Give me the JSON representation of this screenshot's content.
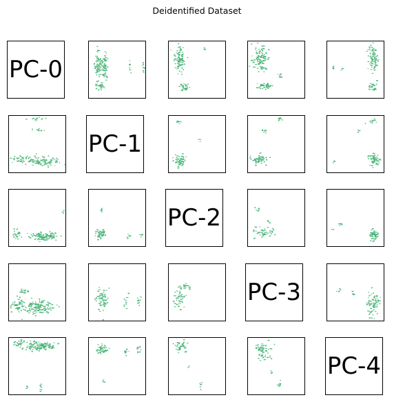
{
  "chart_data": {
    "type": "scatter",
    "title": "Deidentified Dataset",
    "layout": "scatter-matrix",
    "components": [
      "PC-0",
      "PC-1",
      "PC-2",
      "PC-3",
      "PC-4"
    ],
    "marker_color": "#4db67a",
    "grid": false,
    "ticks": "none",
    "axis_range": [
      0,
      1
    ],
    "panels": [
      {
        "row": 0,
        "col": 1,
        "clusters": [
          [
            0.15,
            0.4,
            0.06,
            0.22,
            70
          ],
          [
            0.27,
            0.45,
            0.05,
            0.22,
            55
          ],
          [
            0.2,
            0.78,
            0.08,
            0.07,
            30
          ],
          [
            0.72,
            0.45,
            0.015,
            0.1,
            8
          ],
          [
            0.96,
            0.45,
            0.02,
            0.1,
            8
          ]
        ]
      },
      {
        "row": 0,
        "col": 2,
        "clusters": [
          [
            0.18,
            0.32,
            0.08,
            0.2,
            90
          ],
          [
            0.25,
            0.8,
            0.09,
            0.06,
            30
          ],
          [
            0.62,
            0.12,
            0.015,
            0.04,
            4
          ]
        ]
      },
      {
        "row": 0,
        "col": 3,
        "clusters": [
          [
            0.2,
            0.32,
            0.12,
            0.2,
            110
          ],
          [
            0.3,
            0.78,
            0.18,
            0.05,
            40
          ],
          [
            0.55,
            0.62,
            0.04,
            0.05,
            8
          ]
        ]
      },
      {
        "row": 0,
        "col": 4,
        "clusters": [
          [
            0.8,
            0.3,
            0.08,
            0.2,
            85
          ],
          [
            0.8,
            0.78,
            0.06,
            0.08,
            25
          ],
          [
            0.1,
            0.45,
            0.03,
            0.05,
            6
          ],
          [
            0.25,
            0.5,
            0.02,
            0.05,
            4
          ]
        ]
      },
      {
        "row": 1,
        "col": 0,
        "clusters": [
          [
            0.55,
            0.8,
            0.3,
            0.08,
            110
          ],
          [
            0.2,
            0.75,
            0.14,
            0.06,
            30
          ],
          [
            0.5,
            0.05,
            0.1,
            0.03,
            12
          ],
          [
            0.55,
            0.24,
            0.15,
            0.02,
            10
          ]
        ]
      },
      {
        "row": 1,
        "col": 2,
        "clusters": [
          [
            0.18,
            0.78,
            0.09,
            0.09,
            55
          ],
          [
            0.15,
            0.1,
            0.05,
            0.04,
            8
          ],
          [
            0.55,
            0.42,
            0.03,
            0.03,
            4
          ]
        ]
      },
      {
        "row": 1,
        "col": 3,
        "clusters": [
          [
            0.2,
            0.76,
            0.12,
            0.08,
            60
          ],
          [
            0.28,
            0.25,
            0.05,
            0.03,
            10
          ],
          [
            0.55,
            0.05,
            0.05,
            0.03,
            6
          ]
        ]
      },
      {
        "row": 1,
        "col": 4,
        "clusters": [
          [
            0.82,
            0.76,
            0.08,
            0.09,
            60
          ],
          [
            0.8,
            0.1,
            0.08,
            0.04,
            12
          ],
          [
            0.55,
            0.25,
            0.02,
            0.03,
            4
          ],
          [
            0.1,
            0.8,
            0.02,
            0.03,
            3
          ]
        ]
      },
      {
        "row": 2,
        "col": 0,
        "clusters": [
          [
            0.6,
            0.82,
            0.2,
            0.06,
            110
          ],
          [
            0.15,
            0.78,
            0.08,
            0.07,
            25
          ],
          [
            0.95,
            0.38,
            0.02,
            0.03,
            5
          ]
        ]
      },
      {
        "row": 2,
        "col": 1,
        "clusters": [
          [
            0.2,
            0.78,
            0.1,
            0.09,
            60
          ],
          [
            0.2,
            0.35,
            0.04,
            0.04,
            6
          ],
          [
            0.7,
            0.82,
            0.03,
            0.05,
            5
          ],
          [
            0.92,
            0.82,
            0.02,
            0.05,
            5
          ]
        ]
      },
      {
        "row": 2,
        "col": 3,
        "clusters": [
          [
            0.28,
            0.74,
            0.16,
            0.1,
            45
          ],
          [
            0.15,
            0.35,
            0.04,
            0.05,
            5
          ],
          [
            0.35,
            0.55,
            0.03,
            0.03,
            4
          ]
        ]
      },
      {
        "row": 2,
        "col": 4,
        "clusters": [
          [
            0.82,
            0.8,
            0.08,
            0.08,
            60
          ],
          [
            0.22,
            0.6,
            0.04,
            0.04,
            6
          ],
          [
            0.1,
            0.7,
            0.03,
            0.03,
            3
          ]
        ]
      },
      {
        "row": 3,
        "col": 0,
        "clusters": [
          [
            0.5,
            0.75,
            0.25,
            0.1,
            140
          ],
          [
            0.15,
            0.7,
            0.1,
            0.15,
            40
          ],
          [
            0.25,
            0.48,
            0.08,
            0.04,
            15
          ]
        ]
      },
      {
        "row": 3,
        "col": 1,
        "clusters": [
          [
            0.22,
            0.62,
            0.1,
            0.18,
            70
          ],
          [
            0.65,
            0.62,
            0.03,
            0.12,
            10
          ],
          [
            0.88,
            0.62,
            0.03,
            0.12,
            10
          ]
        ]
      },
      {
        "row": 3,
        "col": 2,
        "clusters": [
          [
            0.18,
            0.6,
            0.1,
            0.18,
            45
          ],
          [
            0.3,
            0.4,
            0.06,
            0.08,
            15
          ]
        ]
      },
      {
        "row": 3,
        "col": 4,
        "clusters": [
          [
            0.8,
            0.7,
            0.1,
            0.18,
            80
          ],
          [
            0.2,
            0.45,
            0.04,
            0.04,
            5
          ],
          [
            0.45,
            0.5,
            0.02,
            0.04,
            4
          ]
        ]
      },
      {
        "row": 4,
        "col": 0,
        "clusters": [
          [
            0.55,
            0.14,
            0.25,
            0.07,
            120
          ],
          [
            0.18,
            0.1,
            0.12,
            0.05,
            30
          ],
          [
            0.55,
            0.85,
            0.03,
            0.06,
            8
          ],
          [
            0.3,
            0.88,
            0.03,
            0.04,
            4
          ]
        ]
      },
      {
        "row": 4,
        "col": 1,
        "clusters": [
          [
            0.22,
            0.18,
            0.09,
            0.09,
            50
          ],
          [
            0.65,
            0.22,
            0.04,
            0.07,
            10
          ],
          [
            0.88,
            0.22,
            0.04,
            0.07,
            10
          ],
          [
            0.25,
            0.75,
            0.02,
            0.04,
            4
          ]
        ]
      },
      {
        "row": 4,
        "col": 2,
        "clusters": [
          [
            0.22,
            0.15,
            0.1,
            0.09,
            45
          ],
          [
            0.55,
            0.85,
            0.03,
            0.06,
            6
          ],
          [
            0.35,
            0.5,
            0.02,
            0.04,
            3
          ]
        ]
      },
      {
        "row": 4,
        "col": 3,
        "clusters": [
          [
            0.25,
            0.22,
            0.12,
            0.12,
            65
          ],
          [
            0.55,
            0.8,
            0.03,
            0.08,
            8
          ],
          [
            0.4,
            0.6,
            0.02,
            0.05,
            4
          ]
        ]
      }
    ]
  }
}
